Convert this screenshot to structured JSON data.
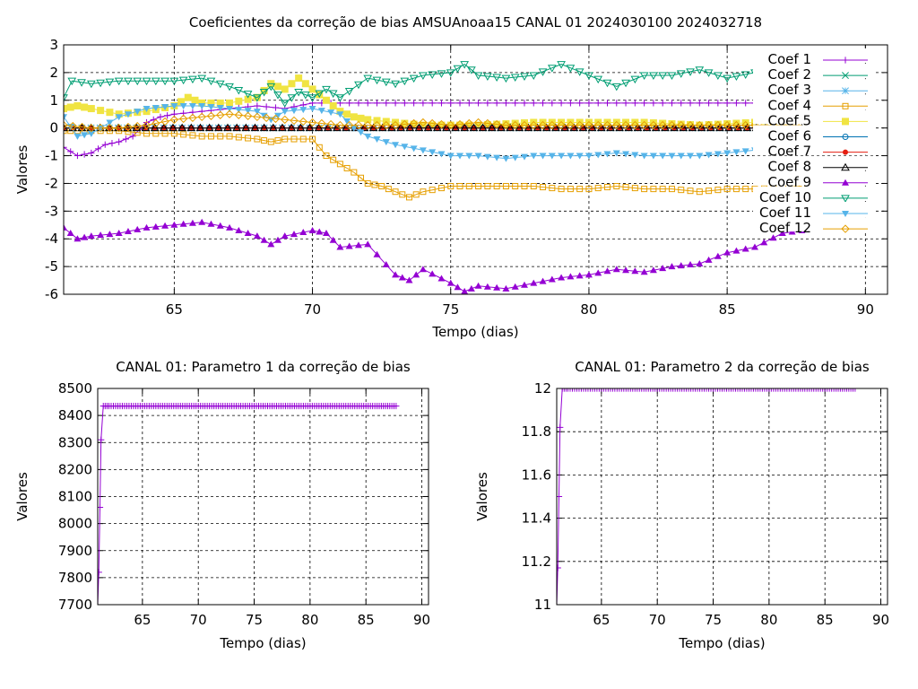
{
  "chart_data": [
    {
      "type": "line",
      "title": "Coeficientes da correção de bias AMSUAnoaa15 CANAL 01 2024030100 2024032718",
      "xlabel": "Tempo (dias)",
      "ylabel": "Valores",
      "xlim": [
        61,
        90.8
      ],
      "ylim": [
        -6,
        3
      ],
      "xticks": [
        65,
        70,
        75,
        80,
        85,
        90
      ],
      "yticks": [
        -6,
        -5,
        -4,
        -3,
        -2,
        -1,
        0,
        1,
        2,
        3
      ],
      "grid": true,
      "legend_position": "top-right",
      "series": [
        {
          "name": "Coef 1",
          "color": "#9400d3",
          "marker": "plus",
          "x": [
            61,
            61.5,
            62,
            62.5,
            63,
            63.5,
            64,
            64.5,
            65,
            66,
            67,
            68,
            69,
            70,
            71,
            72,
            74,
            76,
            78,
            80,
            82,
            84,
            86,
            87.7
          ],
          "y": [
            -0.7,
            -1.0,
            -0.9,
            -0.6,
            -0.5,
            -0.3,
            0.2,
            0.4,
            0.5,
            0.6,
            0.7,
            0.8,
            0.7,
            0.9,
            0.9,
            0.9,
            0.9,
            0.9,
            0.9,
            0.9,
            0.9,
            0.9,
            0.9,
            0.9
          ]
        },
        {
          "name": "Coef 2",
          "color": "#009e73",
          "marker": "x",
          "x": [
            61,
            87.7
          ],
          "y": [
            0,
            0
          ]
        },
        {
          "name": "Coef 3",
          "color": "#56b4e9",
          "marker": "star",
          "x": [
            61,
            87.7
          ],
          "y": [
            0,
            0
          ]
        },
        {
          "name": "Coef 4",
          "color": "#e69f00",
          "marker": "square-open",
          "x": [
            61,
            61.5,
            62,
            63,
            64,
            65,
            66,
            67,
            68,
            68.5,
            69,
            70,
            70.5,
            71,
            71.5,
            72,
            72.5,
            73,
            73.5,
            74,
            75,
            76,
            77,
            78,
            79,
            80,
            81,
            82,
            83,
            84,
            85,
            86,
            87.7
          ],
          "y": [
            -0.1,
            -0.1,
            -0.1,
            -0.1,
            -0.2,
            -0.2,
            -0.3,
            -0.3,
            -0.4,
            -0.5,
            -0.4,
            -0.4,
            -1.0,
            -1.3,
            -1.6,
            -2.0,
            -2.1,
            -2.3,
            -2.5,
            -2.3,
            -2.1,
            -2.1,
            -2.1,
            -2.1,
            -2.2,
            -2.2,
            -2.1,
            -2.2,
            -2.2,
            -2.3,
            -2.2,
            -2.2,
            -2.1
          ]
        },
        {
          "name": "Coef 5",
          "color": "#f0e442",
          "marker": "square-filled",
          "x": [
            61,
            61.5,
            62,
            63,
            64,
            65,
            65.5,
            66,
            67,
            68,
            68.5,
            69,
            69.5,
            70,
            70.5,
            71,
            71.5,
            72,
            73,
            74,
            75,
            76,
            78,
            80,
            82,
            84,
            86,
            87.7
          ],
          "y": [
            0.7,
            0.8,
            0.7,
            0.5,
            0.6,
            0.8,
            1.1,
            0.9,
            0.9,
            1.1,
            1.6,
            1.4,
            1.8,
            1.4,
            1.0,
            0.6,
            0.4,
            0.3,
            0.2,
            0.1,
            0.1,
            0.1,
            0.2,
            0.2,
            0.2,
            0.1,
            0.2,
            0.3
          ]
        },
        {
          "name": "Coef 6",
          "color": "#0072b2",
          "marker": "circle-open",
          "x": [
            61,
            87.7
          ],
          "y": [
            0,
            0
          ]
        },
        {
          "name": "Coef 7",
          "color": "#e51e10",
          "marker": "circle-filled",
          "x": [
            61,
            87.7
          ],
          "y": [
            0,
            0
          ]
        },
        {
          "name": "Coef 8",
          "color": "#000000",
          "marker": "triangle-open",
          "x": [
            61,
            87.7
          ],
          "y": [
            0,
            0
          ]
        },
        {
          "name": "Coef 9",
          "color": "#9400d3",
          "marker": "triangle-filled",
          "x": [
            61,
            61.5,
            62,
            63,
            64,
            65,
            66,
            67,
            68,
            68.5,
            69,
            70,
            70.5,
            71,
            72,
            73,
            73.5,
            74,
            75,
            75.5,
            76,
            77,
            78,
            79,
            80,
            81,
            82,
            83,
            84,
            85,
            86,
            87,
            87.7
          ],
          "y": [
            -3.6,
            -4.0,
            -3.9,
            -3.8,
            -3.6,
            -3.5,
            -3.4,
            -3.6,
            -3.9,
            -4.2,
            -3.9,
            -3.7,
            -3.8,
            -4.3,
            -4.2,
            -5.3,
            -5.5,
            -5.1,
            -5.6,
            -5.9,
            -5.7,
            -5.8,
            -5.6,
            -5.4,
            -5.3,
            -5.1,
            -5.2,
            -5.0,
            -4.9,
            -4.5,
            -4.3,
            -3.8,
            -3.7
          ]
        },
        {
          "name": "Coef 10",
          "color": "#009e73",
          "marker": "triangle-down-open",
          "x": [
            61,
            61.3,
            62,
            63,
            64,
            65,
            66,
            67,
            68,
            68.5,
            69,
            69.5,
            70,
            70.5,
            71,
            72,
            73,
            74,
            75,
            75.5,
            76,
            77,
            78,
            79,
            80,
            81,
            82,
            83,
            84,
            85,
            86,
            87,
            87.7
          ],
          "y": [
            1.1,
            1.7,
            1.6,
            1.7,
            1.7,
            1.7,
            1.8,
            1.5,
            1.1,
            1.5,
            0.9,
            1.3,
            1.1,
            1.4,
            1.1,
            1.8,
            1.6,
            1.9,
            2.0,
            2.3,
            1.9,
            1.8,
            1.9,
            2.3,
            1.9,
            1.5,
            1.9,
            1.9,
            2.1,
            1.8,
            2.0,
            2.1,
            2.1
          ]
        },
        {
          "name": "Coef 11",
          "color": "#56b4e9",
          "marker": "triangle-down-filled",
          "x": [
            61,
            61.5,
            62,
            63,
            64,
            65,
            66,
            67,
            68,
            68.5,
            69,
            70,
            71,
            71.5,
            72,
            73,
            74,
            75,
            76,
            77,
            78,
            79,
            80,
            81,
            82,
            83,
            84,
            85,
            86,
            87,
            87.7
          ],
          "y": [
            0.4,
            -0.3,
            -0.2,
            0.4,
            0.7,
            0.8,
            0.8,
            0.7,
            0.6,
            0.3,
            0.6,
            0.7,
            0.5,
            0,
            -0.3,
            -0.6,
            -0.8,
            -1.0,
            -1.0,
            -1.1,
            -1.0,
            -1.0,
            -1.0,
            -0.9,
            -1.0,
            -1.0,
            -1.0,
            -0.9,
            -0.8,
            -0.7,
            -0.6
          ]
        },
        {
          "name": "Coef 12",
          "color": "#e69f00",
          "marker": "diamond-open",
          "x": [
            61,
            62,
            63,
            64,
            65,
            66,
            67,
            68,
            69,
            70,
            71,
            72,
            73,
            74,
            75,
            76,
            77,
            78,
            79,
            80,
            81,
            82,
            83,
            84,
            85,
            86,
            87.7
          ],
          "y": [
            0.1,
            0.0,
            0.0,
            0.1,
            0.3,
            0.4,
            0.5,
            0.4,
            0.3,
            0.2,
            0.1,
            0.1,
            0.1,
            0.2,
            0.1,
            0.2,
            0.1,
            0.1,
            0.1,
            0.1,
            0.1,
            0.1,
            0.1,
            0.1,
            0.1,
            0.1,
            0.1
          ]
        }
      ]
    },
    {
      "type": "line",
      "title": "CANAL 01: Parametro 1 da correção de bias",
      "xlabel": "Tempo (dias)",
      "ylabel": "Valores",
      "xlim": [
        61,
        90.6
      ],
      "ylim": [
        7700,
        8500
      ],
      "xticks": [
        65,
        70,
        75,
        80,
        85,
        90
      ],
      "yticks": [
        7700,
        7800,
        7900,
        8000,
        8100,
        8200,
        8300,
        8400,
        8500
      ],
      "grid": true,
      "series": [
        {
          "name": "",
          "color": "#9400d3",
          "marker": "plus",
          "x": [
            61,
            61.1,
            61.2,
            61.3,
            61.5,
            62,
            64,
            66,
            68,
            70,
            72,
            74,
            76,
            78,
            80,
            82,
            84,
            86,
            87.7
          ],
          "y": [
            7700,
            7820,
            8060,
            8310,
            8435,
            8435,
            8435,
            8435,
            8435,
            8435,
            8435,
            8435,
            8435,
            8435,
            8435,
            8435,
            8435,
            8435,
            8435
          ]
        }
      ]
    },
    {
      "type": "line",
      "title": "CANAL 01: Parametro 2 da correção de bias",
      "xlabel": "Tempo (dias)",
      "ylabel": "Valores",
      "xlim": [
        61,
        90.6
      ],
      "ylim": [
        11,
        12
      ],
      "xticks": [
        65,
        70,
        75,
        80,
        85,
        90
      ],
      "yticks": [
        11,
        11.2,
        11.4,
        11.6,
        11.8,
        12
      ],
      "grid": true,
      "series": [
        {
          "name": "",
          "color": "#9400d3",
          "marker": "plus",
          "x": [
            61,
            61.1,
            61.2,
            61.3,
            61.5,
            62,
            64,
            66,
            68,
            70,
            72,
            74,
            76,
            78,
            80,
            82,
            84,
            86,
            87.7
          ],
          "y": [
            11.0,
            11.17,
            11.5,
            11.82,
            12.0,
            12,
            12,
            12,
            12,
            12,
            12,
            12,
            12,
            12,
            12,
            12,
            12,
            12,
            12
          ]
        }
      ]
    }
  ]
}
